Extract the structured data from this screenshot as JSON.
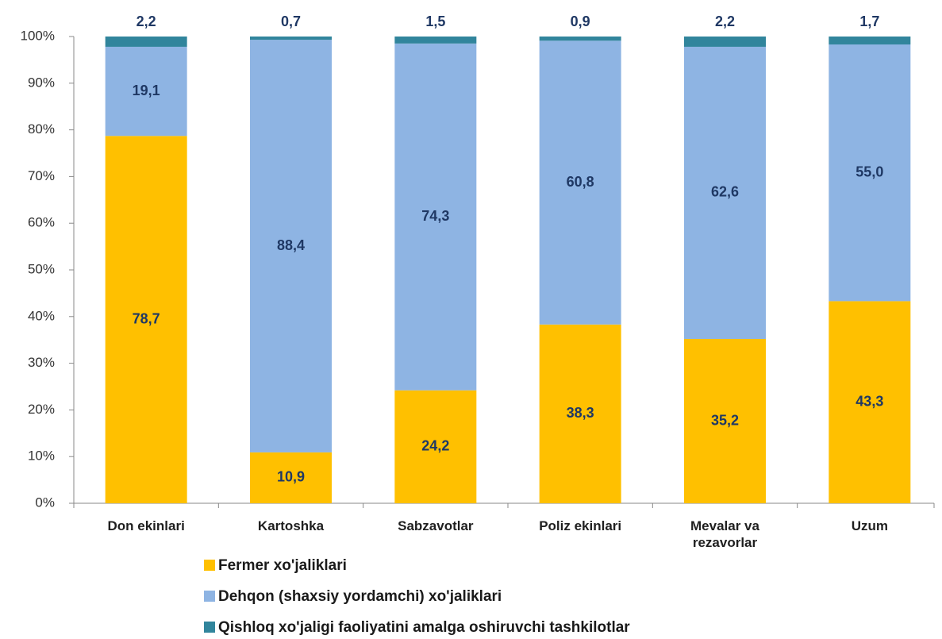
{
  "chart_data": {
    "type": "stacked_bar",
    "categories": [
      "Don ekinlari",
      "Kartoshka",
      "Sabzavotlar",
      "Poliz ekinlari",
      "Mevalar va rezavorlar",
      "Uzum"
    ],
    "series": [
      {
        "name": "Fermer xo'jaliklari",
        "color": "#ffc000",
        "values": [
          78.7,
          10.9,
          24.2,
          38.3,
          35.2,
          43.3
        ],
        "value_labels": [
          "78,7",
          "10,9",
          "24,2",
          "38,3",
          "35,2",
          "43,3"
        ]
      },
      {
        "name": "Dehqon (shaxsiy yordamchi) xo'jaliklari",
        "color": "#8eb4e3",
        "values": [
          19.1,
          88.4,
          74.3,
          60.8,
          62.6,
          55.0
        ],
        "value_labels": [
          "19,1",
          "88,4",
          "74,3",
          "60,8",
          "62,6",
          "55,0"
        ]
      },
      {
        "name": "Qishloq xo'jaligi faoliyatini amalga oshiruvchi tashkilotlar",
        "color": "#31859c",
        "values": [
          2.2,
          0.7,
          1.5,
          0.9,
          2.2,
          1.7
        ],
        "value_labels": [
          "2,2",
          "0,7",
          "1,5",
          "0,9",
          "2,2",
          "1,7"
        ]
      }
    ],
    "ylim": [
      0,
      100
    ],
    "yticks": [
      {
        "value": 0,
        "label": "0%"
      },
      {
        "value": 10,
        "label": "10%"
      },
      {
        "value": 20,
        "label": "20%"
      },
      {
        "value": 30,
        "label": "30%"
      },
      {
        "value": 40,
        "label": "40%"
      },
      {
        "value": 50,
        "label": "50%"
      },
      {
        "value": 60,
        "label": "60%"
      },
      {
        "value": 70,
        "label": "70%"
      },
      {
        "value": 80,
        "label": "80%"
      },
      {
        "value": 90,
        "label": "90%"
      },
      {
        "value": 100,
        "label": "100%"
      }
    ],
    "grid": false
  }
}
